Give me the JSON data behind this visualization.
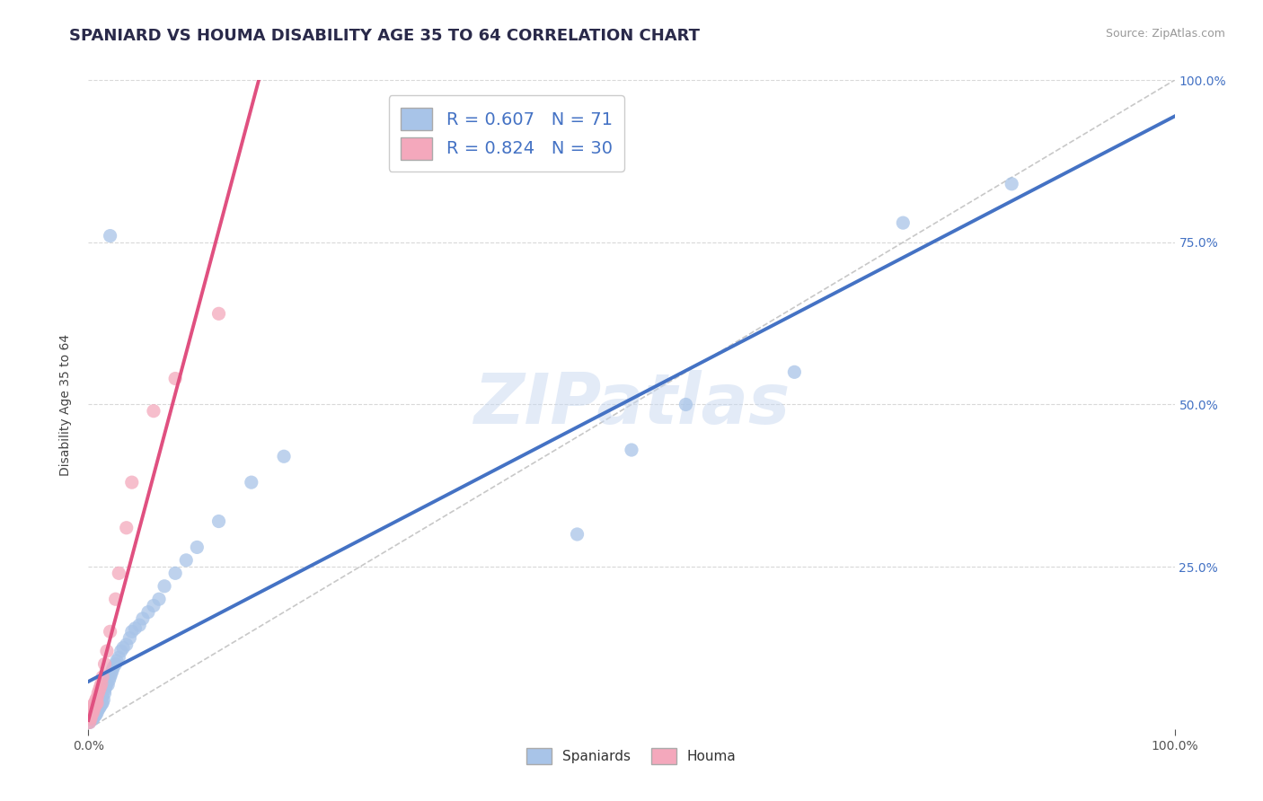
{
  "title": "SPANIARD VS HOUMA DISABILITY AGE 35 TO 64 CORRELATION CHART",
  "source_text": "Source: ZipAtlas.com",
  "ylabel": "Disability Age 35 to 64",
  "xlim": [
    0.0,
    1.0
  ],
  "ylim": [
    0.0,
    1.0
  ],
  "spaniards_color": "#a8c4e8",
  "houma_color": "#f4a8bc",
  "spaniards_line_color": "#4472c4",
  "houma_line_color": "#e05080",
  "diagonal_color": "#c8c8c8",
  "grid_color": "#d8d8d8",
  "R_spaniards": 0.607,
  "N_spaniards": 71,
  "R_houma": 0.824,
  "N_houma": 30,
  "title_fontsize": 13,
  "axis_label_fontsize": 10,
  "tick_fontsize": 10,
  "legend_fontsize": 14,
  "watermark_text": "ZIPatlas",
  "spaniards_line": [
    0.0,
    0.02,
    0.65
  ],
  "houma_line": [
    0.0,
    0.3,
    0.65
  ],
  "spaniards_x": [
    0.001,
    0.002,
    0.002,
    0.003,
    0.003,
    0.003,
    0.004,
    0.004,
    0.004,
    0.005,
    0.005,
    0.005,
    0.005,
    0.006,
    0.006,
    0.006,
    0.007,
    0.007,
    0.007,
    0.008,
    0.008,
    0.008,
    0.009,
    0.009,
    0.01,
    0.01,
    0.011,
    0.011,
    0.012,
    0.012,
    0.013,
    0.013,
    0.014,
    0.015,
    0.015,
    0.016,
    0.017,
    0.018,
    0.019,
    0.02,
    0.021,
    0.022,
    0.023,
    0.025,
    0.026,
    0.028,
    0.03,
    0.032,
    0.035,
    0.038,
    0.04,
    0.043,
    0.047,
    0.05,
    0.055,
    0.06,
    0.065,
    0.07,
    0.08,
    0.09,
    0.1,
    0.12,
    0.15,
    0.18,
    0.02,
    0.45,
    0.5,
    0.55,
    0.65,
    0.75,
    0.85
  ],
  "spaniards_y": [
    0.01,
    0.015,
    0.02,
    0.018,
    0.022,
    0.025,
    0.015,
    0.02,
    0.028,
    0.018,
    0.022,
    0.025,
    0.03,
    0.02,
    0.025,
    0.03,
    0.022,
    0.028,
    0.035,
    0.025,
    0.03,
    0.038,
    0.03,
    0.04,
    0.032,
    0.042,
    0.035,
    0.045,
    0.038,
    0.048,
    0.04,
    0.05,
    0.045,
    0.055,
    0.06,
    0.065,
    0.07,
    0.068,
    0.075,
    0.08,
    0.085,
    0.09,
    0.095,
    0.1,
    0.105,
    0.11,
    0.12,
    0.125,
    0.13,
    0.14,
    0.15,
    0.155,
    0.16,
    0.17,
    0.18,
    0.19,
    0.2,
    0.22,
    0.24,
    0.26,
    0.28,
    0.32,
    0.38,
    0.42,
    0.76,
    0.3,
    0.43,
    0.5,
    0.55,
    0.78,
    0.84
  ],
  "houma_x": [
    0.001,
    0.002,
    0.002,
    0.003,
    0.003,
    0.004,
    0.004,
    0.005,
    0.005,
    0.006,
    0.006,
    0.007,
    0.007,
    0.008,
    0.008,
    0.009,
    0.01,
    0.011,
    0.012,
    0.013,
    0.015,
    0.017,
    0.02,
    0.025,
    0.028,
    0.035,
    0.04,
    0.06,
    0.08,
    0.12
  ],
  "houma_y": [
    0.01,
    0.015,
    0.018,
    0.022,
    0.028,
    0.025,
    0.032,
    0.03,
    0.038,
    0.035,
    0.04,
    0.038,
    0.045,
    0.04,
    0.048,
    0.055,
    0.06,
    0.065,
    0.07,
    0.08,
    0.1,
    0.12,
    0.15,
    0.2,
    0.24,
    0.31,
    0.38,
    0.49,
    0.54,
    0.64
  ]
}
